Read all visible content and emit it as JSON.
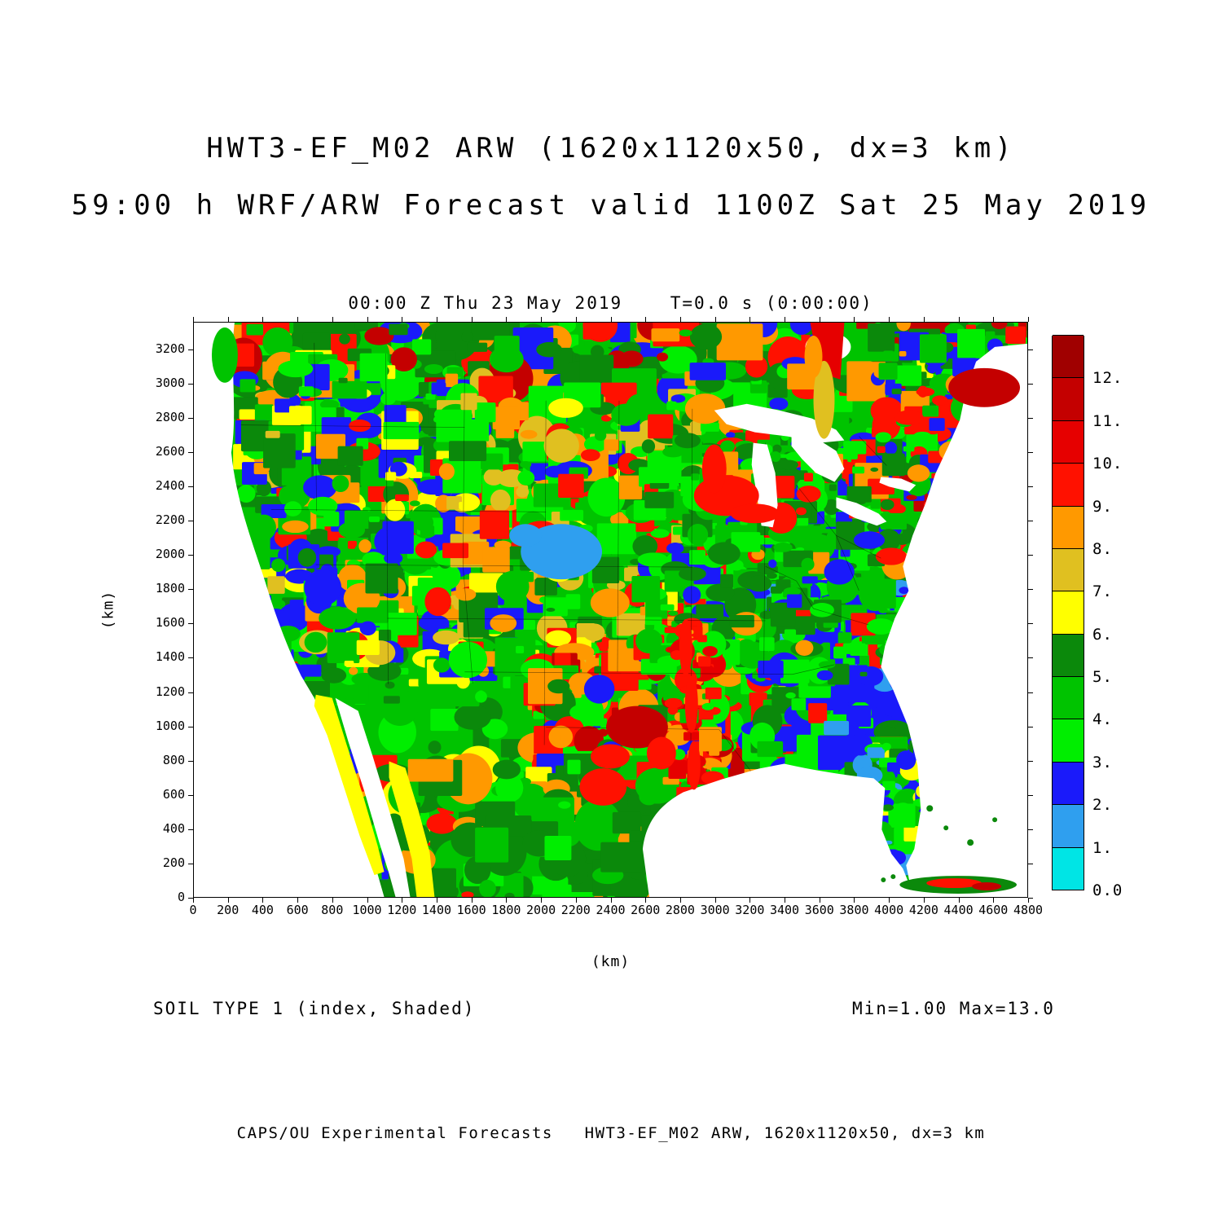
{
  "titles": {
    "line1": "HWT3-EF_M02 ARW (1620x1120x50, dx=3 km)",
    "line2": "59:00 h WRF/ARW Forecast valid 1100Z Sat 25 May 2019",
    "plot_header": "00:00 Z Thu 23 May 2019    T=0.0 s (0:00:00)"
  },
  "annotations": {
    "field_label": "SOIL TYPE 1 (index, Shaded)",
    "minmax_label": "Min=1.00 Max=13.0",
    "credit_line": "CAPS/OU Experimental Forecasts   HWT3-EF_M02 ARW, 1620x1120x50, dx=3 km"
  },
  "chart_data": {
    "type": "heatmap",
    "title": "HWT3-EF_M02 ARW (1620x1120x50, dx=3 km)",
    "subtitle": "59:00 h WRF/ARW Forecast valid 1100Z Sat 25 May 2019",
    "field": "SOIL TYPE 1 (index, Shaded)",
    "valid_label": "00:00 Z Thu 23 May 2019",
    "model_time_label": "T=0.0 s (0:00:00)",
    "min": "1.00",
    "max": "13.0",
    "xlabel": "(km)",
    "ylabel": "(km)",
    "x_ticks": [
      0,
      200,
      400,
      600,
      800,
      1000,
      1200,
      1400,
      1600,
      1800,
      2000,
      2200,
      2400,
      2600,
      2800,
      3000,
      3200,
      3400,
      3600,
      3800,
      4000,
      4200,
      4400,
      4600,
      4800
    ],
    "y_ticks": [
      0,
      200,
      400,
      600,
      800,
      1000,
      1200,
      1400,
      1600,
      1800,
      2000,
      2200,
      2400,
      2600,
      2800,
      3000,
      3200
    ],
    "x_range": [
      0,
      4800
    ],
    "y_range": [
      0,
      3360
    ],
    "grid": false,
    "legend_position": "right",
    "colorbar": {
      "tick_labels": [
        "0.0",
        "1.",
        "2.",
        "3.",
        "4.",
        "5.",
        "6.",
        "7.",
        "8.",
        "9.",
        "10.",
        "11.",
        "12."
      ],
      "colors_bottom_to_top": [
        "#00E5E5",
        "#2F9FEF",
        "#1A1AFA",
        "#00EE00",
        "#00C300",
        "#0B890B",
        "#FFFF00",
        "#E0C020",
        "#FF9900",
        "#FF1100",
        "#E60000",
        "#C40000",
        "#A00000"
      ]
    }
  }
}
